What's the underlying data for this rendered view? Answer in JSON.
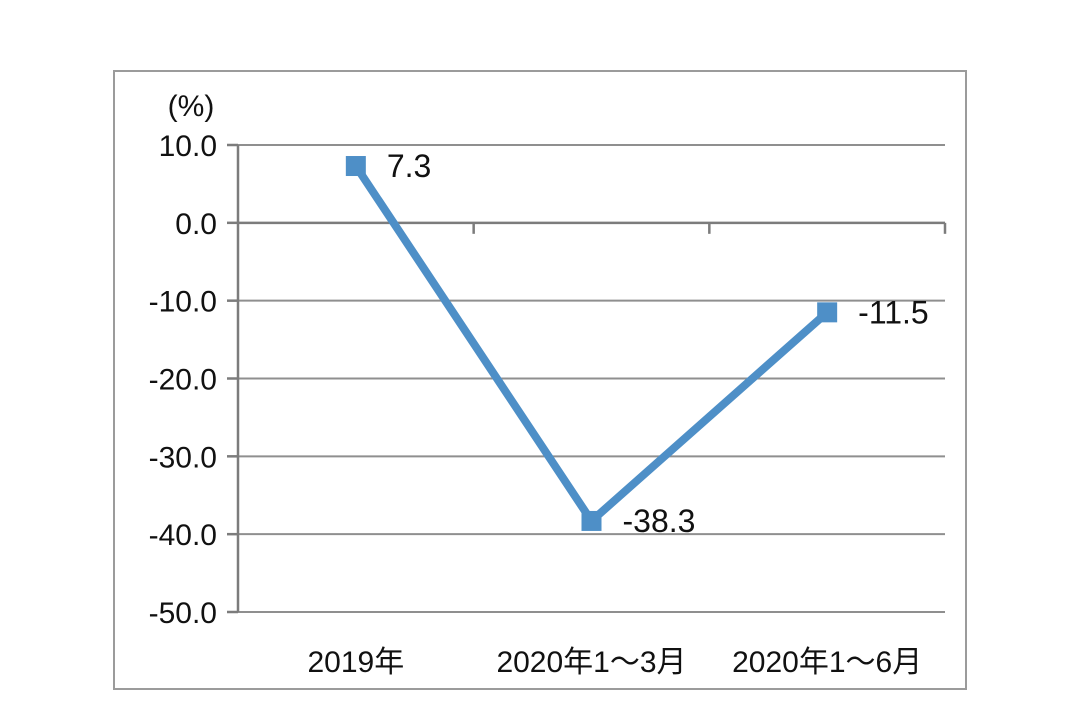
{
  "chart_data": {
    "type": "line",
    "title": "",
    "unit_label": "(%)",
    "categories": [
      "2019年",
      "2020年1～3月",
      "2020年1～6月"
    ],
    "series": [
      {
        "name": "growth-rate",
        "values": [
          7.3,
          -38.3,
          -11.5
        ]
      }
    ],
    "data_labels": [
      "7.3",
      "-38.3",
      "-11.5"
    ],
    "ylim": [
      -50,
      10
    ],
    "ytick_step": 10,
    "ytick_labels": [
      "10.0",
      "0.0",
      "-10.0",
      "-20.0",
      "-30.0",
      "-40.0",
      "-50.0"
    ],
    "grid": true,
    "legend": "none",
    "x_axis_position": 0,
    "marker": "square",
    "colors": {
      "line": "#4e8fc7",
      "marker": "#4e8fc7",
      "gridline": "#8f8f8f",
      "axis": "#7c7c7c",
      "frame_border": "#9b9b9b",
      "text": "#111111",
      "background": "#ffffff"
    }
  }
}
